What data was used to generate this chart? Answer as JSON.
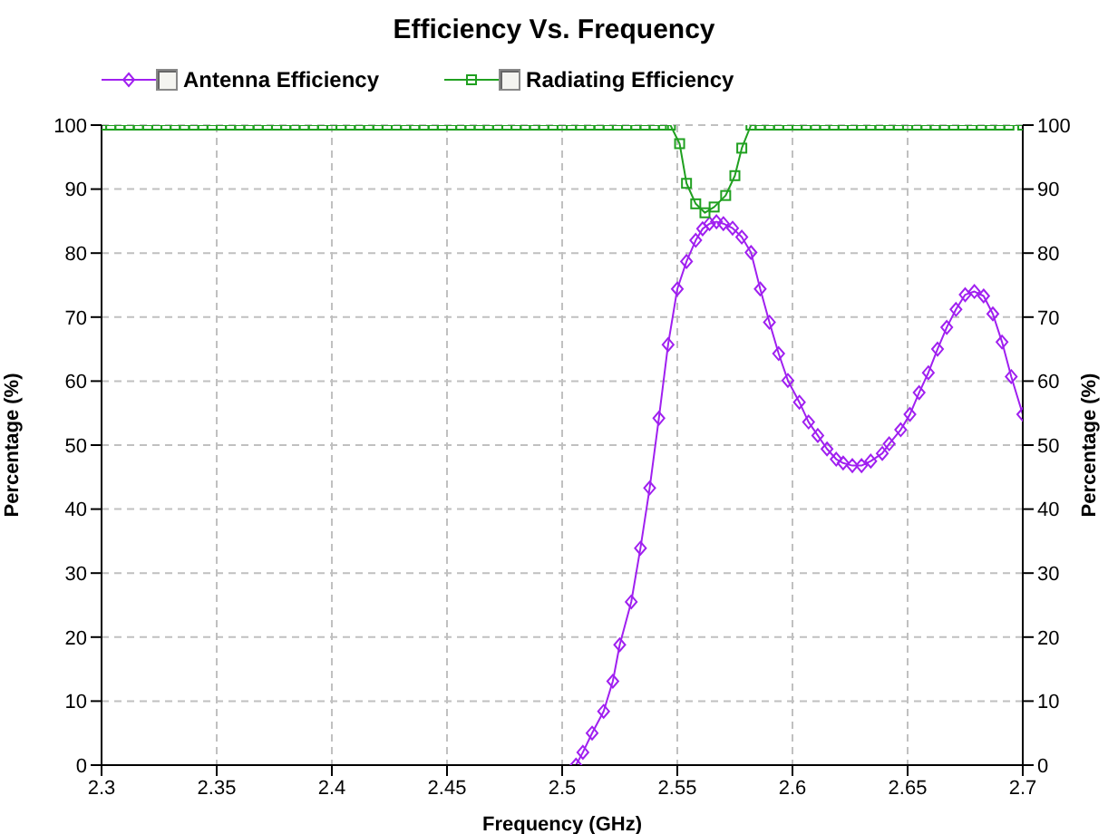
{
  "chart_data": {
    "type": "line",
    "title": "Efficiency Vs. Frequency",
    "xlabel": "Frequency (GHz)",
    "ylabel": "Percentage (%)",
    "y2label": "Percentage (%)",
    "xlim": [
      2.3,
      2.7
    ],
    "xticks": [
      2.3,
      2.35,
      2.4,
      2.45,
      2.5,
      2.55,
      2.6,
      2.65,
      2.7
    ],
    "ylim": [
      0,
      100
    ],
    "yticks": [
      0,
      10,
      20,
      30,
      40,
      50,
      60,
      70,
      80,
      90,
      100
    ],
    "y2lim": [
      0,
      100
    ],
    "y2ticks": [
      0,
      10,
      20,
      30,
      40,
      50,
      60,
      70,
      80,
      90,
      100
    ],
    "grid": true,
    "legend": "top left",
    "line_style": "solid",
    "series": [
      {
        "name": "Antenna Efficiency",
        "color": "#a020f0",
        "marker": "diamond",
        "x": [
          2.506,
          2.509,
          2.513,
          2.518,
          2.522,
          2.525,
          2.53,
          2.534,
          2.538,
          2.542,
          2.546,
          2.55,
          2.554,
          2.558,
          2.561,
          2.564,
          2.567,
          2.57,
          2.574,
          2.578,
          2.582,
          2.586,
          2.59,
          2.594,
          2.598,
          2.603,
          2.607,
          2.611,
          2.615,
          2.619,
          2.622,
          2.626,
          2.63,
          2.634,
          2.639,
          2.642,
          2.647,
          2.651,
          2.655,
          2.659,
          2.663,
          2.667,
          2.671,
          2.675,
          2.679,
          2.683,
          2.687,
          2.691,
          2.695,
          2.7
        ],
        "values": [
          0,
          2.0,
          5.0,
          8.4,
          13.1,
          18.8,
          25.5,
          33.9,
          43.3,
          54.2,
          65.7,
          74.4,
          78.7,
          82.0,
          83.8,
          84.6,
          84.9,
          84.6,
          83.9,
          82.5,
          80.1,
          74.4,
          69.2,
          64.3,
          60.1,
          56.7,
          53.6,
          51.5,
          49.4,
          47.8,
          47.2,
          46.8,
          46.8,
          47.5,
          48.7,
          50.2,
          52.4,
          54.8,
          58.2,
          61.3,
          65.0,
          68.4,
          71.2,
          73.5,
          74.0,
          73.3,
          70.5,
          66.1,
          60.7,
          54.8
        ]
      },
      {
        "name": "Radiating Efficiency",
        "color": "#20a020",
        "marker": "square",
        "x": [
          2.3,
          2.304,
          2.308,
          2.312,
          2.316,
          2.32,
          2.324,
          2.328,
          2.332,
          2.336,
          2.34,
          2.344,
          2.348,
          2.352,
          2.356,
          2.36,
          2.364,
          2.368,
          2.372,
          2.376,
          2.38,
          2.384,
          2.388,
          2.392,
          2.396,
          2.4,
          2.404,
          2.408,
          2.412,
          2.416,
          2.42,
          2.424,
          2.428,
          2.432,
          2.436,
          2.44,
          2.444,
          2.448,
          2.452,
          2.456,
          2.46,
          2.464,
          2.468,
          2.472,
          2.476,
          2.48,
          2.484,
          2.488,
          2.492,
          2.496,
          2.5,
          2.504,
          2.508,
          2.512,
          2.516,
          2.52,
          2.524,
          2.528,
          2.532,
          2.536,
          2.54,
          2.544,
          2.547,
          2.551,
          2.554,
          2.558,
          2.562,
          2.566,
          2.571,
          2.575,
          2.578,
          2.582,
          2.586,
          2.59,
          2.594,
          2.598,
          2.602,
          2.606,
          2.61,
          2.614,
          2.618,
          2.622,
          2.626,
          2.63,
          2.634,
          2.638,
          2.642,
          2.646,
          2.65,
          2.654,
          2.658,
          2.662,
          2.666,
          2.67,
          2.674,
          2.678,
          2.682,
          2.686,
          2.69,
          2.694,
          2.7
        ],
        "values": [
          100,
          100,
          100,
          100,
          100,
          100,
          100,
          100,
          100,
          100,
          100,
          100,
          100,
          100,
          100,
          100,
          100,
          100,
          100,
          100,
          100,
          100,
          100,
          100,
          100,
          100,
          100,
          100,
          100,
          100,
          100,
          100,
          100,
          100,
          100,
          100,
          100,
          100,
          100,
          100,
          100,
          100,
          100,
          100,
          100,
          100,
          100,
          100,
          100,
          100,
          100,
          100,
          100,
          100,
          100,
          100,
          100,
          100,
          100,
          100,
          100,
          100,
          100,
          97.1,
          90.9,
          87.7,
          86.3,
          87.2,
          89.0,
          92.1,
          96.4,
          100,
          100,
          100,
          100,
          100,
          100,
          100,
          100,
          100,
          100,
          100,
          100,
          100,
          100,
          100,
          100,
          100,
          100,
          100,
          100,
          100,
          100,
          100,
          100,
          100,
          100,
          100,
          100,
          100,
          100
        ]
      }
    ]
  }
}
